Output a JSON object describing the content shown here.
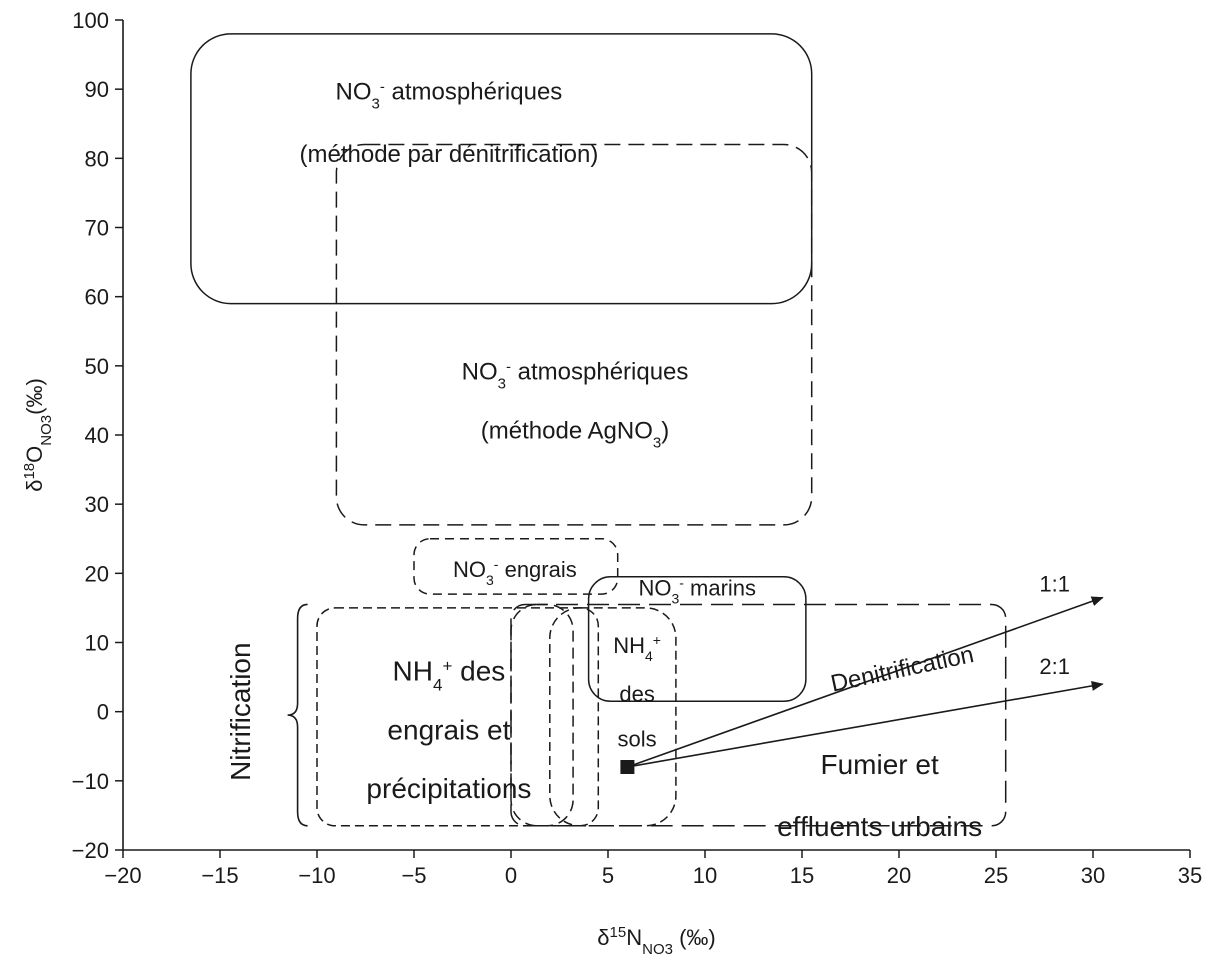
{
  "chart_data": {
    "type": "scatter",
    "xlabel": {
      "main": "δ",
      "sup": "15",
      "base": "N",
      "sub": "NO3",
      "unit": " (‰)"
    },
    "ylabel": {
      "main": "δ",
      "sup": "18",
      "base": "O",
      "sub": "NO3",
      "unit": "(‰)"
    },
    "xlim": [
      -20,
      35
    ],
    "ylim": [
      -20,
      100
    ],
    "x_ticks": [
      "−20",
      "−15",
      "−10",
      "−5",
      "0",
      "5",
      "10",
      "15",
      "20",
      "25",
      "30",
      "35"
    ],
    "y_ticks": [
      "−20",
      "−10",
      "0",
      "10",
      "20",
      "30",
      "40",
      "50",
      "60",
      "70",
      "80",
      "90",
      "100"
    ],
    "grid": false,
    "regions": [
      {
        "id": "atm-denit",
        "x": [
          -16.5,
          15.5
        ],
        "y": [
          59,
          98
        ],
        "border": "solid",
        "lines": [
          {
            "a": "NO",
            "s": "3",
            "sup": "-",
            "b": " atmosphériques"
          },
          {
            "a": "(méthode par dénitrification)"
          }
        ]
      },
      {
        "id": "atm-agno3",
        "x": [
          -9,
          15.5
        ],
        "y": [
          27,
          82
        ],
        "border": "dashed",
        "lines": [
          {
            "a": "NO",
            "s": "3",
            "sup": "-",
            "b": " atmosphériques"
          },
          {
            "a": " (méthode AgNO",
            "s": "3",
            "b": ")"
          }
        ]
      },
      {
        "id": "engrais",
        "x": [
          -5,
          5.5
        ],
        "y": [
          17,
          25
        ],
        "border": "dashed",
        "lines": [
          {
            "a": "NO",
            "s": "3",
            "sup": "-",
            "b": " engrais"
          }
        ]
      },
      {
        "id": "marins",
        "x": [
          4,
          15.2
        ],
        "y": [
          1.5,
          19.5
        ],
        "border": "solid",
        "lines": [
          {
            "a": "NO",
            "s": "3",
            "sup": "-",
            "b": " marins"
          }
        ]
      },
      {
        "id": "nh4-engrais",
        "x": [
          -10,
          4.5
        ],
        "y": [
          -16.5,
          15
        ],
        "border": "dashed",
        "lines": [
          {
            "a": "NH",
            "s": "4",
            "sup": "+",
            "b": " des"
          },
          {
            "a": "engrais et"
          },
          {
            "a": "précipitations"
          }
        ]
      },
      {
        "id": "fumier",
        "x": [
          0,
          25.5
        ],
        "y": [
          -16.5,
          15.5
        ],
        "border": "dashed",
        "lines": [
          {
            "a": "Fumier et"
          },
          {
            "a": "effluents urbains"
          }
        ]
      },
      {
        "id": "nh4-sols",
        "x": [
          2,
          8.5
        ],
        "y": [
          -16.5,
          15
        ],
        "border": "dashed",
        "lines": [
          {
            "a": "NH",
            "s": "4",
            "sup": "+"
          },
          {
            "a": "des"
          },
          {
            "a": "sols"
          }
        ]
      }
    ],
    "point": {
      "x": 6,
      "y": -8
    },
    "arrows": [
      {
        "label": "1:1",
        "from": [
          6,
          -8
        ],
        "to": [
          30.5,
          16.5
        ]
      },
      {
        "label": "2:1",
        "from": [
          6,
          -8
        ],
        "to": [
          30.5,
          4
        ]
      }
    ],
    "annotations": {
      "denitrification": "Denitrification",
      "nitrification": "Nitrification"
    }
  }
}
